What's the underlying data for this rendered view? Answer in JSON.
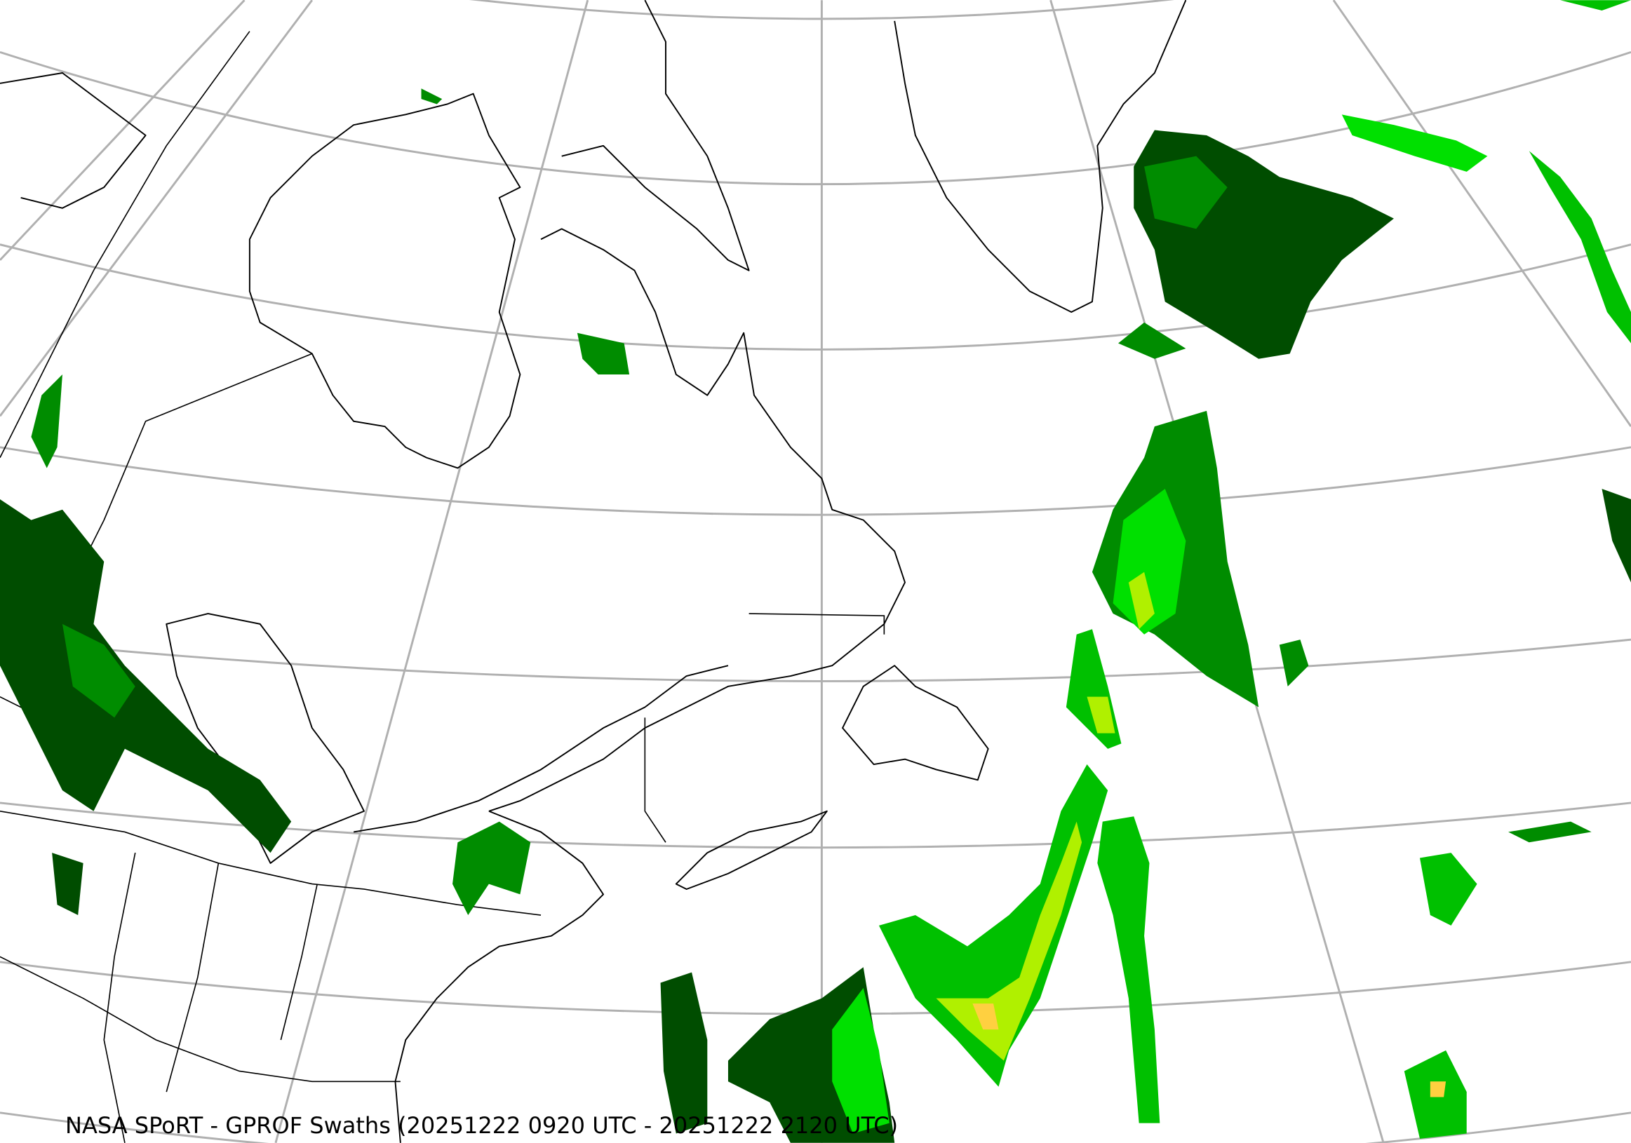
{
  "map": {
    "caption": "NASA SPoRT - GPROF Swaths (20251222 0920 UTC - 20251222 2120 UTC)",
    "colors": {
      "light_precip": "#004d00",
      "moderate_precip": "#008c00",
      "heavier_precip": "#00e000",
      "heavy_precip": "#b0f000",
      "very_heavy_precip": "#ffd040",
      "graticule": "#b0b0b0",
      "coastline": "#000000"
    }
  }
}
